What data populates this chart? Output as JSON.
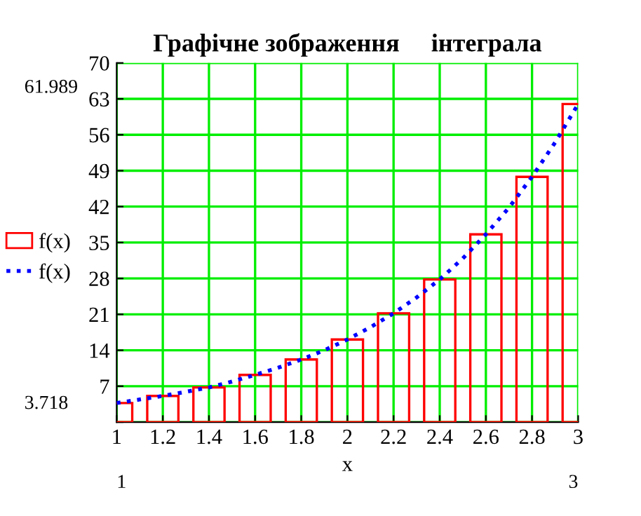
{
  "chart_data": {
    "type": "bar",
    "title": "Графічне зображення     інтеграла",
    "xlabel": "x",
    "series": [
      {
        "name": "f(x)",
        "color": "#ff0000",
        "x": [
          1,
          1.2,
          1.4,
          1.6,
          1.8,
          2,
          2.2,
          2.4,
          2.6,
          2.8,
          3
        ],
        "values": [
          3.718,
          5.1,
          6.75,
          9.2,
          12.2,
          16.1,
          21.2,
          27.8,
          36.6,
          47.8,
          61.989
        ]
      },
      {
        "name": "f(x)",
        "type": "line",
        "color": "#0000ff",
        "line_style": "dotted",
        "x": [
          1,
          1.1,
          1.2,
          1.3,
          1.4,
          1.5,
          1.6,
          1.7,
          1.8,
          1.9,
          2,
          2.1,
          2.2,
          2.3,
          2.4,
          2.5,
          2.6,
          2.7,
          2.8,
          2.9,
          3
        ],
        "values": [
          3.718,
          4.4,
          5.1,
          5.9,
          6.75,
          7.9,
          9.2,
          10.6,
          12.2,
          14.0,
          16.1,
          18.5,
          21.2,
          24.3,
          27.8,
          31.9,
          36.6,
          41.8,
          47.8,
          54.5,
          61.989
        ]
      }
    ],
    "xlim": [
      1,
      3
    ],
    "xticks": [
      1,
      1.2,
      1.4,
      1.6,
      1.8,
      2,
      2.2,
      2.4,
      2.6,
      2.8,
      3
    ],
    "ylim": [
      0,
      70
    ],
    "yticks": [
      {
        "value": 0,
        "label": null
      },
      7,
      14,
      21,
      28,
      35,
      42,
      49,
      56,
      63,
      70
    ],
    "grid": true,
    "legend": "left",
    "annotations": [
      "61.989",
      "3.718",
      "1",
      "3"
    ]
  }
}
